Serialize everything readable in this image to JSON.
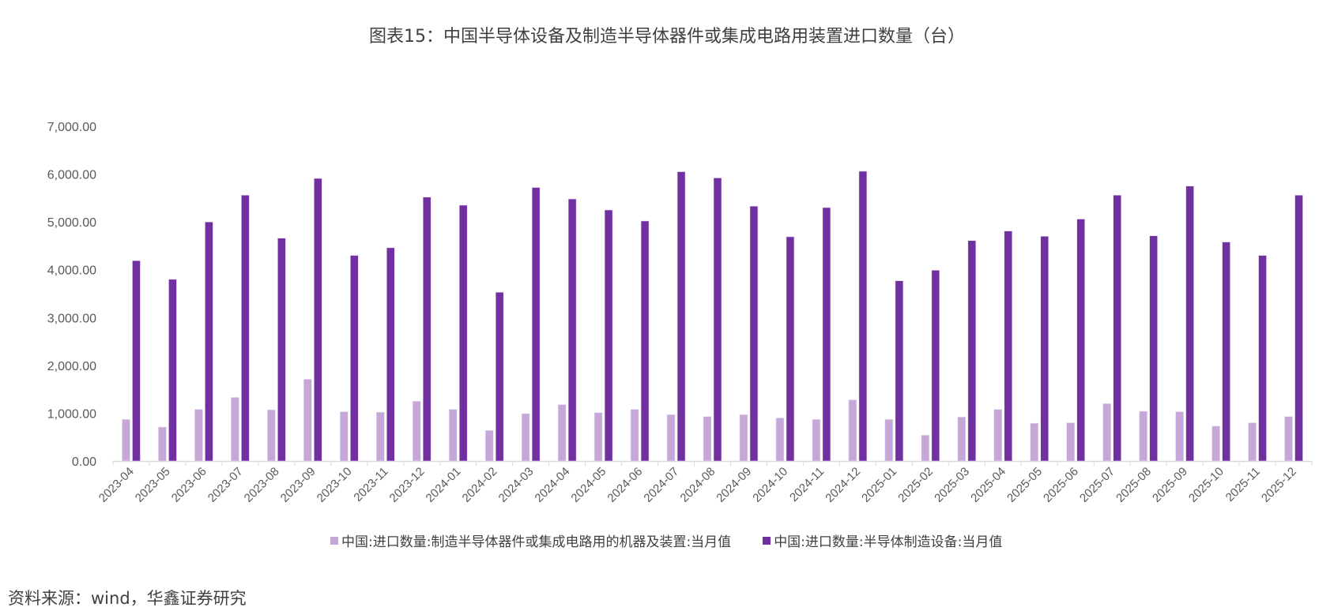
{
  "chart_data": {
    "type": "bar",
    "title": "图表15：中国半导体设备及制造半导体器件或集成电路用装置进口数量（台）",
    "categories": [
      "2023-04",
      "2023-05",
      "2023-06",
      "2023-07",
      "2023-08",
      "2023-09",
      "2023-10",
      "2023-11",
      "2023-12",
      "2024-01",
      "2024-02",
      "2024-03",
      "2024-04",
      "2024-05",
      "2024-06",
      "2024-07",
      "2024-08",
      "2024-09",
      "2024-10",
      "2024-11",
      "2024-12",
      "2025-01",
      "2025-02",
      "2025-03",
      "2025-04",
      "2025-05",
      "2025-06",
      "2025-07",
      "2025-08",
      "2025-09",
      "2025-10",
      "2025-11",
      "2025-12"
    ],
    "series": [
      {
        "name": "中国:进口数量:制造半导体器件或集成电路用的机器及装置:当月值",
        "color": "#C5A8D8",
        "values": [
          870,
          710,
          1080,
          1330,
          1070,
          1710,
          1030,
          1020,
          1250,
          1080,
          640,
          990,
          1180,
          1010,
          1080,
          970,
          930,
          970,
          900,
          870,
          1280,
          870,
          540,
          920,
          1080,
          790,
          800,
          1200,
          1040,
          1030,
          730,
          800,
          930
        ]
      },
      {
        "name": "中国:进口数量:半导体制造设备:当月值",
        "color": "#7030A0",
        "values": [
          4190,
          3800,
          5000,
          5560,
          4660,
          5910,
          4300,
          4460,
          5520,
          5350,
          3530,
          5720,
          5480,
          5250,
          5020,
          6050,
          5920,
          5330,
          4690,
          5300,
          6060,
          3770,
          3990,
          4610,
          4810,
          4700,
          5060,
          5560,
          4710,
          5750,
          4580,
          4300,
          5560
        ]
      }
    ],
    "yticks": [
      "0.00",
      "1,000.00",
      "2,000.00",
      "3,000.00",
      "4,000.00",
      "5,000.00",
      "6,000.00",
      "7,000.00"
    ],
    "ylim": [
      0,
      7000
    ],
    "grid": false,
    "legend": "bottom"
  },
  "source": "资料来源：wind，华鑫证券研究"
}
